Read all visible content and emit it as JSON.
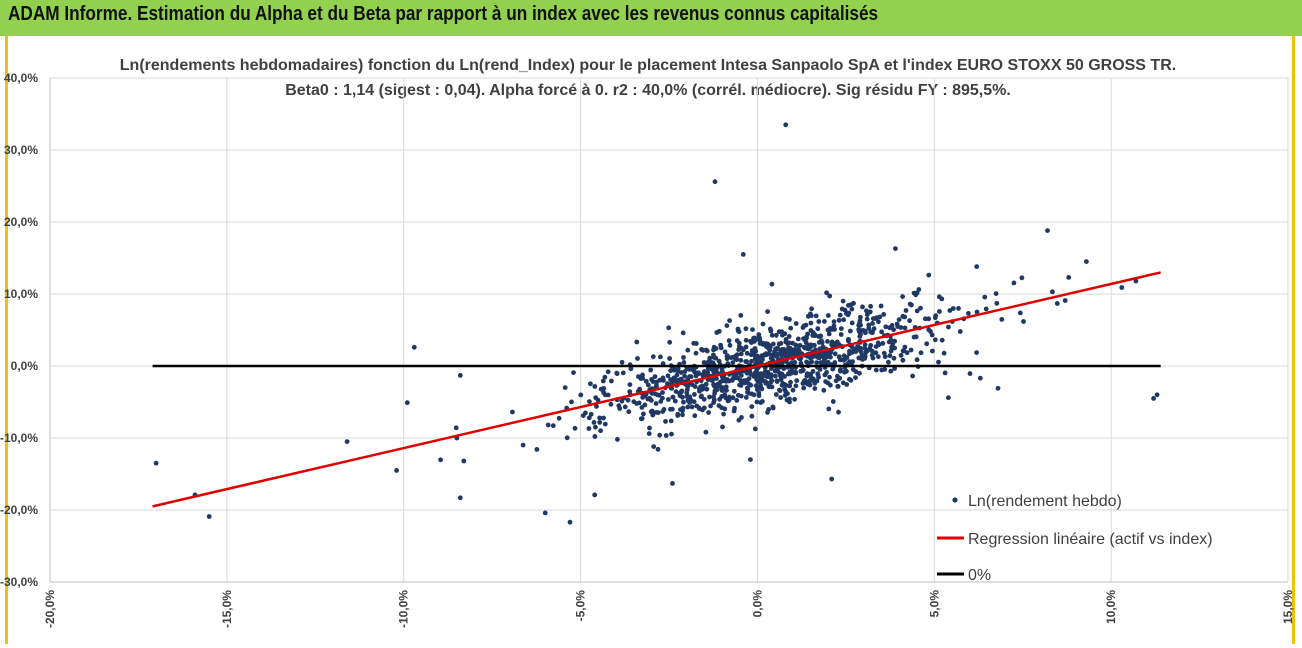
{
  "header": {
    "title": "ADAM Informe. Estimation du Alpha et du Beta par rapport à un index avec les revenus connus capitalisés"
  },
  "colors": {
    "header_band": "#92d050",
    "frame_border": "#f2c200",
    "points": "#1f3864",
    "regression": "#e00000",
    "zero_line": "#000000",
    "grid": "#d9d9d9"
  },
  "chart_data": {
    "type": "scatter",
    "title_line1": "Ln(rendements hebdomadaires) fonction du Ln(rend_Index) pour le placement Intesa Sanpaolo SpA et l'index EURO STOXX 50 GROSS TR.",
    "title_line2": "Beta0 : 1,14 (sigest : 0,04). Alpha forcé à 0. r2 : 40,0% (corrél. médiocre). Sig résidu FY : 895,5%.",
    "xlim": [
      -0.2,
      0.15
    ],
    "ylim": [
      -0.3,
      0.4
    ],
    "x_ticks": [
      -0.2,
      -0.15,
      -0.1,
      -0.05,
      0.0,
      0.05,
      0.1,
      0.15
    ],
    "x_tick_labels": [
      "-20,0%",
      "-15,0%",
      "-10,0%",
      "-5,0%",
      "0,0%",
      "5,0%",
      "10,0%",
      "15,0%"
    ],
    "y_ticks": [
      -0.3,
      -0.2,
      -0.1,
      0.0,
      0.1,
      0.2,
      0.3,
      0.4
    ],
    "y_tick_labels": [
      "-30,0%",
      "-20,0%",
      "-10,0%",
      "0,0%",
      "10,0%",
      "20,0%",
      "30,0%",
      "40,0%"
    ],
    "grid": true,
    "legend_position": "bottom-right",
    "legend": {
      "points": "Ln(rendement hebdo)",
      "regression": "Regression linéaire (actif vs index)",
      "zero": "0%"
    },
    "regression": {
      "slope": 1.14,
      "intercept": 0.0,
      "x_range": [
        -0.171,
        0.114
      ]
    },
    "zero_line": {
      "y": 0.0,
      "x_range": [
        -0.171,
        0.114
      ]
    },
    "outliers": [
      {
        "x": 0.008,
        "y": 0.335
      },
      {
        "x": -0.012,
        "y": 0.256
      },
      {
        "x": -0.004,
        "y": 0.155
      },
      {
        "x": -0.17,
        "y": -0.135
      },
      {
        "x": -0.155,
        "y": -0.209
      },
      {
        "x": -0.159,
        "y": -0.179
      },
      {
        "x": -0.116,
        "y": -0.105
      },
      {
        "x": -0.102,
        "y": -0.145
      },
      {
        "x": -0.099,
        "y": -0.051
      },
      {
        "x": -0.097,
        "y": 0.026
      },
      {
        "x": -0.085,
        "y": -0.1
      },
      {
        "x": -0.084,
        "y": -0.013
      },
      {
        "x": -0.084,
        "y": -0.183
      },
      {
        "x": -0.083,
        "y": -0.132
      },
      {
        "x": -0.06,
        "y": -0.204
      },
      {
        "x": -0.053,
        "y": -0.217
      },
      {
        "x": -0.046,
        "y": -0.179
      },
      {
        "x": -0.024,
        "y": -0.163
      },
      {
        "x": 0.082,
        "y": 0.188
      },
      {
        "x": 0.093,
        "y": 0.145
      },
      {
        "x": 0.103,
        "y": 0.109
      },
      {
        "x": 0.107,
        "y": 0.118
      },
      {
        "x": 0.113,
        "y": -0.04
      },
      {
        "x": 0.112,
        "y": -0.045
      },
      {
        "x": 0.054,
        "y": -0.044
      },
      {
        "x": 0.068,
        "y": -0.031
      },
      {
        "x": 0.063,
        "y": -0.017
      },
      {
        "x": 0.087,
        "y": 0.091
      },
      {
        "x": 0.088,
        "y": 0.123
      },
      {
        "x": 0.039,
        "y": 0.163
      },
      {
        "x": 0.021,
        "y": -0.157
      },
      {
        "x": -0.002,
        "y": -0.13
      },
      {
        "x": 0.062,
        "y": 0.138
      }
    ],
    "cloud": {
      "count": 1100,
      "beta": 1.14,
      "x_center": 0.003,
      "x_sd": 0.022,
      "resid_sd": 0.028
    }
  }
}
